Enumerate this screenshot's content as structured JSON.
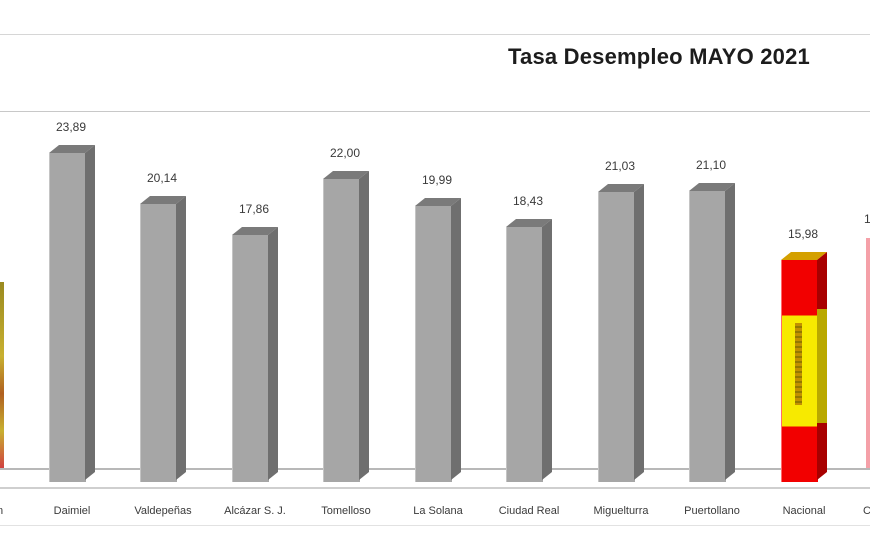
{
  "chart_data": {
    "type": "bar",
    "title": "Tasa Desempleo MAYO 2021",
    "xlabel": "",
    "ylabel": "",
    "style": "3d-column",
    "grid": false,
    "legend": null,
    "categories": [
      "Daimiel",
      "Valdepeñas",
      "Alcázar S. J.",
      "Tomelloso",
      "La Solana",
      "Ciudad Real",
      "Miguelturra",
      "Puertollano",
      "Nacional"
    ],
    "values": [
      23.89,
      20.14,
      17.86,
      22.0,
      19.99,
      18.43,
      21.03,
      21.1,
      15.98
    ],
    "value_labels": [
      "23,89",
      "20,14",
      "17,86",
      "22,00",
      "19,99",
      "18,43",
      "21,03",
      "21,10",
      "15,98"
    ],
    "bar_colors": [
      "#a6a6a6",
      "#a6a6a6",
      "#a6a6a6",
      "#a6a6a6",
      "#a6a6a6",
      "#a6a6a6",
      "#a6a6a6",
      "#a6a6a6",
      "spain-flag"
    ],
    "partially_visible": {
      "left_edge_category_fragment": "n",
      "right_edge_category_fragment": "C",
      "right_edge_value_fragment": "1"
    }
  },
  "title": "Tasa Desempleo MAYO 2021",
  "bars": [
    {
      "label": "Daimiel",
      "value": "23,89",
      "num": 23.89
    },
    {
      "label": "Valdepeñas",
      "value": "20,14",
      "num": 20.14
    },
    {
      "label": "Alcázar S. J.",
      "value": "17,86",
      "num": 17.86
    },
    {
      "label": "Tomelloso",
      "value": "22,00",
      "num": 22.0
    },
    {
      "label": "La Solana",
      "value": "19,99",
      "num": 19.99
    },
    {
      "label": "Ciudad Real",
      "value": "18,43",
      "num": 18.43
    },
    {
      "label": "Miguelturra",
      "value": "21,03",
      "num": 21.03
    },
    {
      "label": "Puertollano",
      "value": "21,10",
      "num": 21.1
    },
    {
      "label": "Nacional",
      "value": "15,98",
      "num": 15.98
    }
  ],
  "edge_fragments": {
    "left_label": "n",
    "right_label": "C",
    "right_value": "1"
  },
  "colors": {
    "bar_gray": "#a6a6a6",
    "flag_red": "#f20000",
    "flag_yellow": "#f7ea00"
  }
}
